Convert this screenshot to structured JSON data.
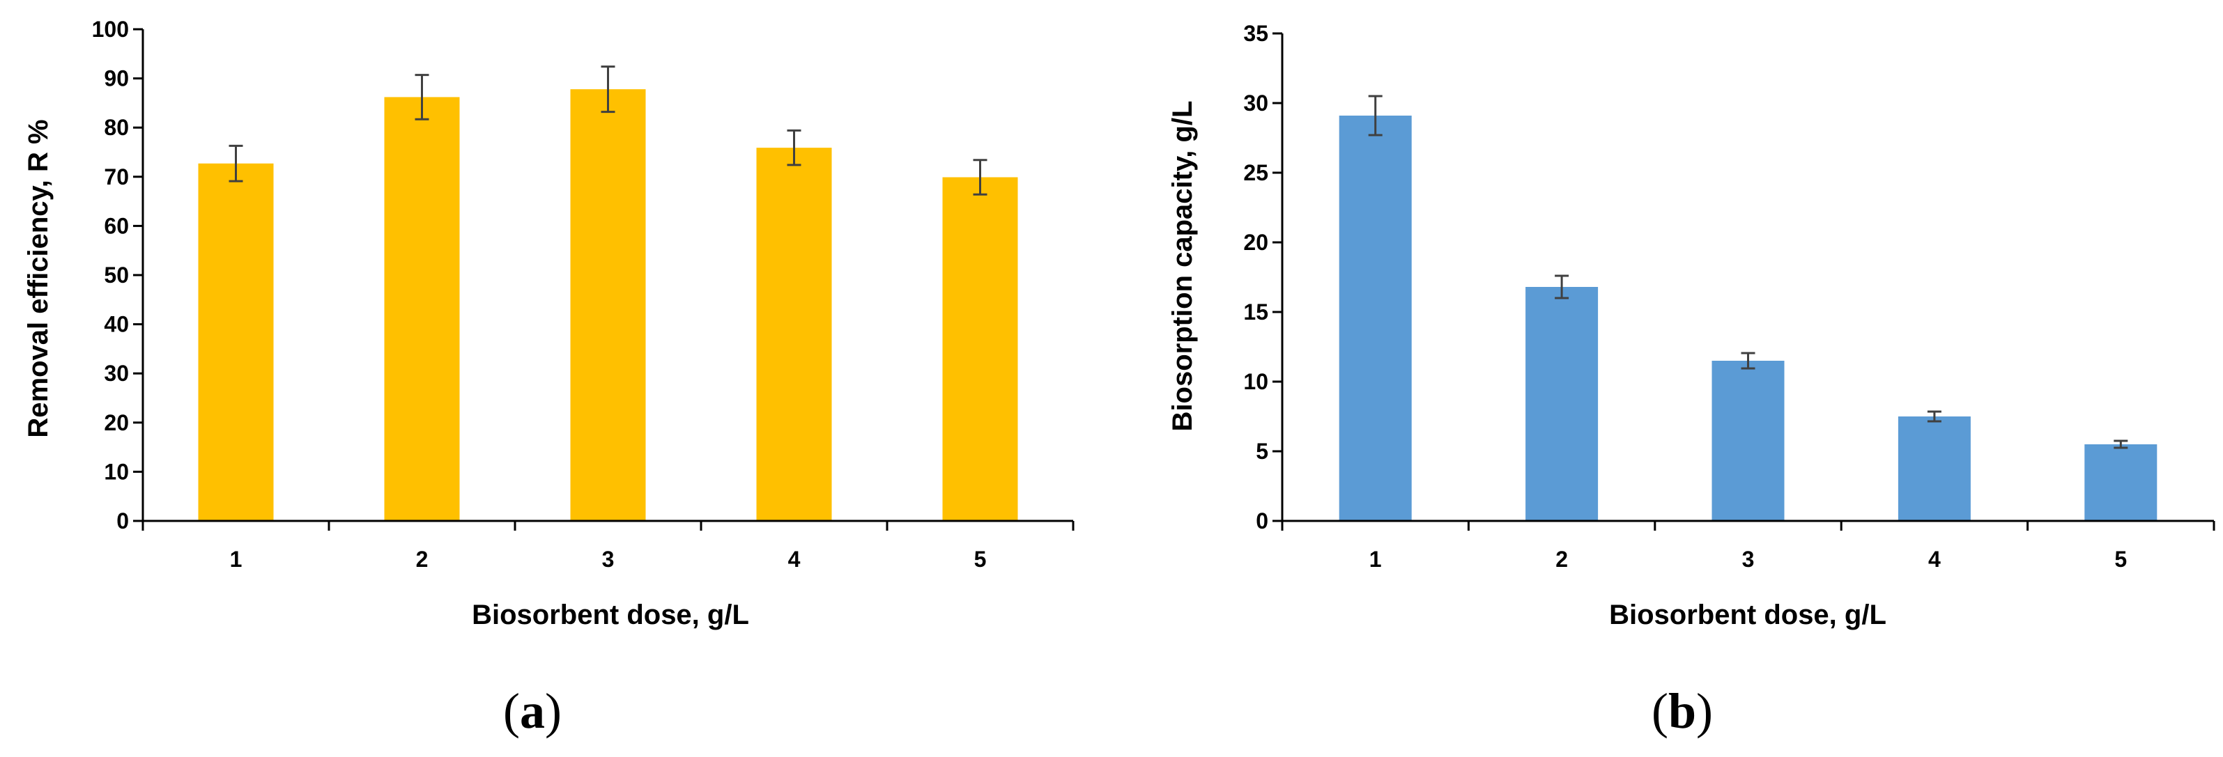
{
  "chart_data": [
    {
      "type": "bar",
      "panel_label": "a",
      "title": "",
      "categories": [
        "1",
        "2",
        "3",
        "4",
        "5"
      ],
      "values": [
        72.7,
        86.2,
        87.8,
        75.9,
        69.9
      ],
      "error": [
        3.6,
        4.5,
        4.6,
        3.5,
        3.5
      ],
      "xlabel": "Biosorbent dose, g/L",
      "ylabel": "Removal efficiency, R %",
      "ylim": [
        0,
        100
      ],
      "yticks": [
        "0",
        "10",
        "20",
        "30",
        "40",
        "50",
        "60",
        "70",
        "80",
        "90",
        "100"
      ],
      "color": "#FFC000",
      "grid": false,
      "legend": "none"
    },
    {
      "type": "bar",
      "panel_label": "b",
      "title": "",
      "categories": [
        "1",
        "2",
        "3",
        "4",
        "5"
      ],
      "values": [
        29.1,
        16.8,
        11.5,
        7.5,
        5.5
      ],
      "error": [
        1.4,
        0.8,
        0.55,
        0.35,
        0.25
      ],
      "xlabel": "Biosorbent dose, g/L",
      "ylabel": "Biosorption capacity, g/L",
      "ylim": [
        0,
        35
      ],
      "yticks": [
        "0",
        "5",
        "10",
        "15",
        "20",
        "25",
        "30",
        "35"
      ],
      "color": "#5B9BD5",
      "grid": false,
      "legend": "none"
    }
  ],
  "colors": {
    "axis": "#000000",
    "error_bar": "#404040"
  }
}
